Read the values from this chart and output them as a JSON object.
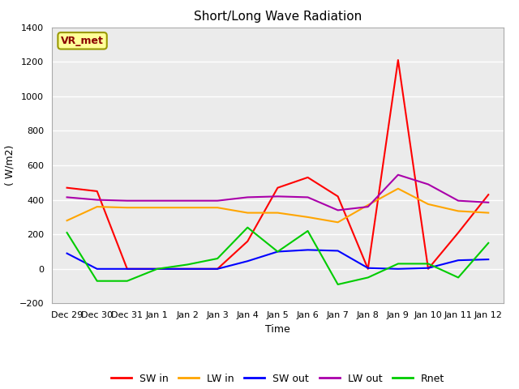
{
  "title": "Short/Long Wave Radiation",
  "xlabel": "Time",
  "ylabel": "( W/m2)",
  "x_labels": [
    "Dec 29",
    "Dec 30",
    "Dec 31",
    "Jan 1",
    "Jan 2",
    "Jan 3",
    "Jan 4",
    "Jan 5",
    "Jan 6",
    "Jan 7",
    "Jan 8",
    "Jan 9",
    "Jan 10",
    "Jan 11",
    "Jan 12"
  ],
  "x_values": [
    0,
    1,
    2,
    3,
    4,
    5,
    6,
    7,
    8,
    9,
    10,
    11,
    12,
    13,
    14
  ],
  "SW_in": [
    470,
    450,
    0,
    0,
    0,
    0,
    160,
    470,
    530,
    420,
    0,
    1210,
    0,
    210,
    430
  ],
  "LW_in": [
    280,
    360,
    355,
    355,
    355,
    355,
    325,
    325,
    300,
    270,
    370,
    465,
    375,
    335,
    325
  ],
  "SW_out": [
    90,
    0,
    0,
    0,
    0,
    0,
    45,
    100,
    110,
    105,
    5,
    0,
    5,
    50,
    55
  ],
  "LW_out": [
    415,
    400,
    395,
    395,
    395,
    395,
    415,
    420,
    415,
    340,
    360,
    545,
    490,
    395,
    385
  ],
  "Rnet": [
    210,
    -70,
    -70,
    0,
    25,
    60,
    240,
    100,
    220,
    -90,
    -50,
    30,
    30,
    -50,
    150
  ],
  "colors": {
    "SW_in": "#ff0000",
    "LW_in": "#ffa500",
    "SW_out": "#0000ff",
    "LW_out": "#aa00aa",
    "Rnet": "#00cc00"
  },
  "ylim": [
    -200,
    1400
  ],
  "yticks": [
    -200,
    0,
    200,
    400,
    600,
    800,
    1000,
    1200,
    1400
  ],
  "annotation_text": "VR_met",
  "bg_color": "#ebebeb",
  "title_fontsize": 11,
  "tick_fontsize": 8,
  "label_fontsize": 9,
  "legend_fontsize": 9,
  "linewidth": 1.5
}
